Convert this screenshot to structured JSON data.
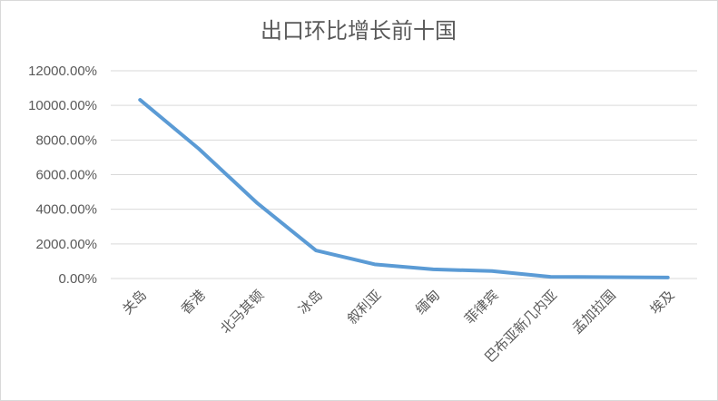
{
  "chart_data": {
    "type": "line",
    "title": "出口环比增长前十国",
    "categories": [
      "关岛",
      "香港",
      "北马其顿",
      "冰岛",
      "叙利亚",
      "缅甸",
      "菲律宾",
      "巴布亚新几内亚",
      "孟加拉国",
      "埃及"
    ],
    "series": [
      {
        "values": [
          10320,
          7500,
          4350,
          1620,
          820,
          530,
          430,
          100,
          80,
          60
        ]
      }
    ],
    "yticks": [
      "0.00%",
      "2000.00%",
      "4000.00%",
      "6000.00%",
      "8000.00%",
      "10000.00%",
      "12000.00%"
    ],
    "ylim": [
      0,
      12000
    ],
    "grid": true,
    "line_color": "#5b9bd5"
  }
}
